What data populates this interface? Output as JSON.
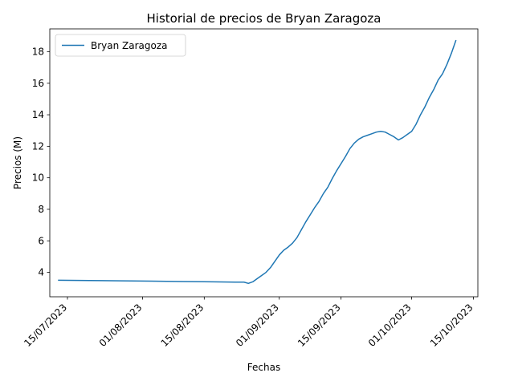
{
  "chart_data": {
    "type": "line",
    "title": "Historial de precios de Bryan Zaragoza",
    "xlabel": "Fechas",
    "ylabel": "Precios (M)",
    "x_type": "date",
    "xlim": [
      "2023-07-11",
      "2023-10-16"
    ],
    "ylim": [
      2.45,
      19.45
    ],
    "x_ticks": [
      {
        "date": "2023-07-15",
        "label": "15/07/2023"
      },
      {
        "date": "2023-08-01",
        "label": "01/08/2023"
      },
      {
        "date": "2023-08-15",
        "label": "15/08/2023"
      },
      {
        "date": "2023-09-01",
        "label": "01/09/2023"
      },
      {
        "date": "2023-09-15",
        "label": "15/09/2023"
      },
      {
        "date": "2023-10-01",
        "label": "01/10/2023"
      },
      {
        "date": "2023-10-15",
        "label": "15/10/2023"
      }
    ],
    "y_ticks": [
      {
        "value": 4,
        "label": "4"
      },
      {
        "value": 6,
        "label": "6"
      },
      {
        "value": 8,
        "label": "8"
      },
      {
        "value": 10,
        "label": "10"
      },
      {
        "value": 12,
        "label": "12"
      },
      {
        "value": 14,
        "label": "14"
      },
      {
        "value": 16,
        "label": "16"
      },
      {
        "value": 18,
        "label": "18"
      }
    ],
    "grid": false,
    "legend_position": "top-left",
    "series": [
      {
        "name": "Bryan Zaragoza",
        "color": "#1f77b4",
        "x": [
          "2023-07-13",
          "2023-07-20",
          "2023-07-27",
          "2023-08-03",
          "2023-08-10",
          "2023-08-17",
          "2023-08-22",
          "2023-08-24",
          "2023-08-25",
          "2023-08-26",
          "2023-08-27",
          "2023-08-28",
          "2023-08-29",
          "2023-08-30",
          "2023-08-31",
          "2023-09-01",
          "2023-09-02",
          "2023-09-03",
          "2023-09-04",
          "2023-09-05",
          "2023-09-06",
          "2023-09-07",
          "2023-09-08",
          "2023-09-09",
          "2023-09-10",
          "2023-09-11",
          "2023-09-12",
          "2023-09-13",
          "2023-09-14",
          "2023-09-15",
          "2023-09-16",
          "2023-09-17",
          "2023-09-18",
          "2023-09-19",
          "2023-09-20",
          "2023-09-21",
          "2023-09-22",
          "2023-09-23",
          "2023-09-24",
          "2023-09-25",
          "2023-09-26",
          "2023-09-27",
          "2023-09-28",
          "2023-09-29",
          "2023-09-30",
          "2023-10-01",
          "2023-10-02",
          "2023-10-03",
          "2023-10-04",
          "2023-10-05",
          "2023-10-06",
          "2023-10-07",
          "2023-10-08",
          "2023-10-09",
          "2023-10-10",
          "2023-10-11"
        ],
        "values": [
          3.5,
          3.48,
          3.46,
          3.44,
          3.42,
          3.4,
          3.38,
          3.38,
          3.3,
          3.4,
          3.6,
          3.8,
          4.0,
          4.3,
          4.7,
          5.1,
          5.4,
          5.6,
          5.85,
          6.2,
          6.7,
          7.2,
          7.65,
          8.1,
          8.5,
          9.0,
          9.4,
          9.95,
          10.45,
          10.9,
          11.35,
          11.85,
          12.2,
          12.45,
          12.6,
          12.7,
          12.8,
          12.9,
          12.95,
          12.9,
          12.75,
          12.6,
          12.4,
          12.55,
          12.75,
          12.95,
          13.4,
          14.0,
          14.5,
          15.1,
          15.6,
          16.2,
          16.6,
          17.2,
          17.9,
          18.7
        ]
      }
    ]
  }
}
